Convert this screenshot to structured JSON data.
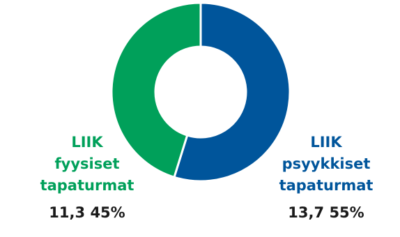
{
  "chart_data": {
    "type": "pie",
    "variant": "donut",
    "slices": [
      {
        "name": "LIIK psyykkiset tapaturmat",
        "label_lines": [
          "LIIK",
          "psyykkiset",
          "tapaturmat"
        ],
        "value": 13.7,
        "value_label": "13,7",
        "percent": 55,
        "percent_label": "55%",
        "color": "#00559b"
      },
      {
        "name": "LIIK fyysiset tapaturmat",
        "label_lines": [
          "LIIK",
          "fyysiset",
          "tapaturmat"
        ],
        "value": 11.3,
        "value_label": "11,3",
        "percent": 45,
        "percent_label": "45%",
        "color": "#00a05a"
      }
    ],
    "start_angle_deg": 0,
    "direction": "clockwise",
    "separator_color": "#ffffff"
  }
}
